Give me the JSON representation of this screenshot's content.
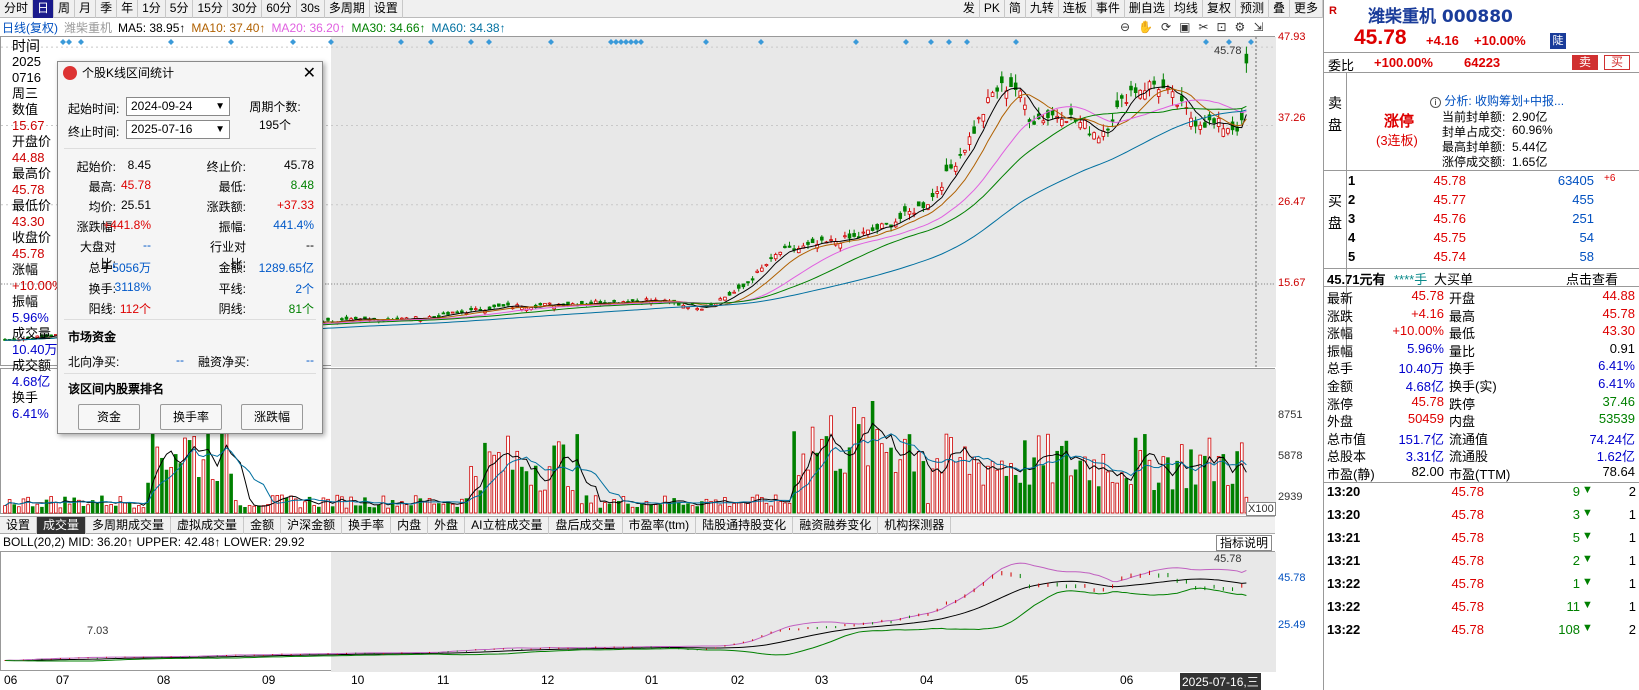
{
  "toolbar": {
    "left_buttons": [
      "分时",
      "日",
      "周",
      "月",
      "季",
      "年",
      "1分",
      "5分",
      "15分",
      "30分",
      "60分",
      "30s",
      "多周期",
      "设置"
    ],
    "right_buttons": [
      "发",
      "PK",
      "简",
      "九转",
      "连板",
      "事件",
      "删自选",
      "均线",
      "复权",
      "预测",
      "叠",
      "更多"
    ]
  },
  "ma_legend": {
    "period": "日线(复权)",
    "stock": "潍柴重机",
    "ma5": "MA5: 38.95↑",
    "ma10": "MA10: 37.40↑",
    "ma20": "MA20: 36.20↑",
    "ma30": "MA30: 34.66↑",
    "ma60": "MA60: 34.38↑"
  },
  "main_axis": {
    "labels": [
      "47.93",
      "37.26",
      "26.47",
      "15.67"
    ],
    "last_price_tag": "45.78"
  },
  "volume_axis": {
    "labels": [
      "8751",
      "5878",
      "2939"
    ],
    "unit": "X100"
  },
  "boll_axis": {
    "labels": [
      "45.78",
      "25.49"
    ],
    "last_tag": "45.78",
    "low_tag": "7.03"
  },
  "indicator_tabs": [
    "设置",
    "成交量",
    "多周期成交量",
    "虚拟成交量",
    "金额",
    "沪深金额",
    "换手率",
    "内盘",
    "外盘",
    "AI立桩成交量",
    "盘后成交量",
    "市盈率(ttm)",
    "陆股通持股变化",
    "融资融券变化",
    "机构探测器"
  ],
  "indicator_help": "指标说明",
  "boll": {
    "label": "BOLL(20,2)",
    "mid": "MID: 36.20↑",
    "upper": "UPPER: 42.48↑",
    "lower": "LOWER: 29.92"
  },
  "x_axis": [
    "06",
    "07",
    "08",
    "09",
    "10",
    "11",
    "12",
    "01",
    "02",
    "03",
    "04",
    "05",
    "06",
    "2025-07-16,三"
  ],
  "left_info": [
    {
      "label": "时间",
      "value": "2025"
    },
    {
      "label": "",
      "value": "0716"
    },
    {
      "label": "周三",
      "value": ""
    },
    {
      "label": "数值",
      "value": "15.67"
    },
    {
      "label": "开盘价",
      "value": "44.88"
    },
    {
      "label": "最高价",
      "value": "45.78"
    },
    {
      "label": "最低价",
      "value": "43.30"
    },
    {
      "label": "收盘价",
      "value": "45.78"
    },
    {
      "label": "涨幅",
      "value": "+10.00%"
    },
    {
      "label": "振幅",
      "value": "5.96%"
    },
    {
      "label": "成交量",
      "value": "10.40万"
    },
    {
      "label": "成交额",
      "value": "4.68亿"
    },
    {
      "label": "换手",
      "value": "6.41%"
    }
  ],
  "dialog": {
    "title": "个股K线区间统计",
    "start_label": "起始时间:",
    "start_date": "2024-09-24",
    "end_label": "终止时间:",
    "end_date": "2025-07-16",
    "period_label": "周期个数:",
    "period_count": "195个",
    "stats": [
      {
        "l1": "起始价:",
        "v1": "8.45",
        "l2": "终止价:",
        "v2": "45.78"
      },
      {
        "l1": "最高:",
        "v1": "45.78",
        "l2": "最低:",
        "v2": "8.48"
      },
      {
        "l1": "均价:",
        "v1": "25.51",
        "l2": "涨跌额:",
        "v2": "+37.33"
      },
      {
        "l1": "涨跌幅:",
        "v1": "+441.8%",
        "l2": "振幅:",
        "v2": "441.4%"
      },
      {
        "l1": "大盘对比:",
        "v1": "--",
        "l2": "行业对比:",
        "v2": "--"
      },
      {
        "l1": "总手:",
        "v1": "5056万",
        "l2": "金额:",
        "v2": "1289.65亿"
      },
      {
        "l1": "换手:",
        "v1": "3118%",
        "l2": "平线:",
        "v2": "2个"
      },
      {
        "l1": "阳线:",
        "v1": "112个",
        "l2": "阴线:",
        "v2": "81个"
      }
    ],
    "fund_title": "市场资金",
    "north_label": "北向净买:",
    "north_value": "--",
    "margin_label": "融资净买:",
    "margin_value": "--",
    "rank_title": "该区间内股票排名",
    "buttons": [
      "资金",
      "换手率",
      "涨跌幅"
    ]
  },
  "quote": {
    "name": "潍柴重机 000880",
    "price": "45.78",
    "change": "+4.16",
    "pct": "+10.00%",
    "ratio_label": "委比",
    "ratio": "+100.00%",
    "ratio_vol": "64223",
    "sell_btn": "卖",
    "buy_btn": "买",
    "limit_up": "涨停",
    "limit_days": "(3连板)",
    "analysis_title": "分析: 收购筹划+中报...",
    "analysis": [
      {
        "k": "当前封单额:",
        "v": "2.90亿"
      },
      {
        "k": "封单占成交:",
        "v": "60.96%"
      },
      {
        "k": "最高封单额:",
        "v": "5.44亿"
      },
      {
        "k": "涨停成交额:",
        "v": "1.65亿"
      }
    ],
    "sell_side_label": "卖盘",
    "buy_side_label": "买盘",
    "bids": [
      {
        "n": "1",
        "p": "45.78",
        "v": "63405",
        "d": "+6"
      },
      {
        "n": "2",
        "p": "45.77",
        "v": "455",
        "d": ""
      },
      {
        "n": "3",
        "p": "45.76",
        "v": "251",
        "d": ""
      },
      {
        "n": "4",
        "p": "45.75",
        "v": "54",
        "d": ""
      },
      {
        "n": "5",
        "p": "45.74",
        "v": "58",
        "d": ""
      }
    ],
    "bar_price": "45.71元有",
    "bar_hand": "****手",
    "bar_big": "大买单",
    "bar_check": "点击查看",
    "stats": [
      {
        "k1": "最新",
        "v1": "45.78",
        "k2": "开盘",
        "v2": "44.88"
      },
      {
        "k1": "涨跌",
        "v1": "+4.16",
        "k2": "最高",
        "v2": "45.78"
      },
      {
        "k1": "涨幅",
        "v1": "+10.00%",
        "k2": "最低",
        "v2": "43.30"
      },
      {
        "k1": "振幅",
        "v1": "5.96%",
        "k2": "量比",
        "v2": "0.91"
      },
      {
        "k1": "总手",
        "v1": "10.40万",
        "k2": "换手",
        "v2": "6.41%"
      },
      {
        "k1": "金额",
        "v1": "4.68亿",
        "k2": "换手(实)",
        "v2": "6.41%"
      },
      {
        "k1": "涨停",
        "v1": "45.78",
        "k2": "跌停",
        "v2": "37.46"
      },
      {
        "k1": "外盘",
        "v1": "50459",
        "k2": "内盘",
        "v2": "53539"
      },
      {
        "k1": "总市值",
        "v1": "151.7亿",
        "k2": "流通值",
        "v2": "74.24亿"
      },
      {
        "k1": "总股本",
        "v1": "3.31亿",
        "k2": "流通股",
        "v2": "1.62亿"
      },
      {
        "k1": "市盈(静)",
        "v1": "82.00",
        "k2": "市盈(TTM)",
        "v2": "78.64"
      }
    ],
    "ticks": [
      {
        "t": "13:20",
        "p": "45.78",
        "v": "9",
        "n": "2"
      },
      {
        "t": "13:20",
        "p": "45.78",
        "v": "3",
        "n": "1"
      },
      {
        "t": "13:21",
        "p": "45.78",
        "v": "5",
        "n": "1"
      },
      {
        "t": "13:21",
        "p": "45.78",
        "v": "2",
        "n": "1"
      },
      {
        "t": "13:22",
        "p": "45.78",
        "v": "1",
        "n": "1"
      },
      {
        "t": "13:22",
        "p": "45.78",
        "v": "11",
        "n": "1"
      },
      {
        "t": "13:22",
        "p": "45.78",
        "v": "108",
        "n": "2"
      }
    ]
  },
  "colors": {
    "up": "#d00000",
    "down": "#008000",
    "ma5": "#000000",
    "ma10": "#b06000",
    "ma20": "#e060e0",
    "ma30": "#008000",
    "ma60": "#0070a0"
  }
}
